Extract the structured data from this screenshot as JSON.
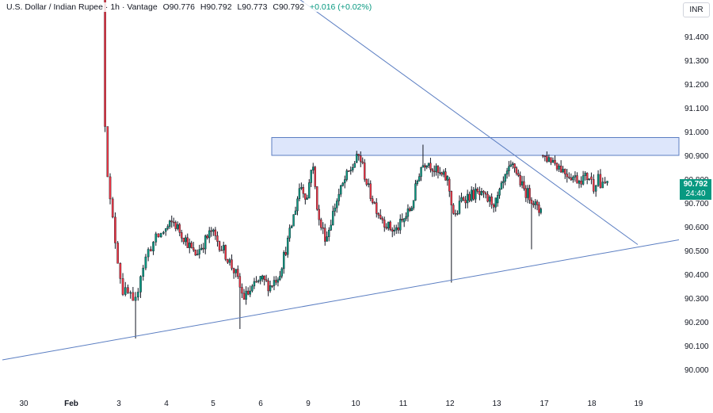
{
  "legend": {
    "symbol": "U.S. Dollar / Indian Rupee",
    "interval": "1h",
    "broker": "Vantage",
    "open": "O90.776",
    "high": "H90.792",
    "low": "L90.773",
    "close": "C90.792",
    "change": "+0.016 (+0.02%)",
    "change_color": "#089981"
  },
  "currency_button": "INR",
  "last_price": {
    "price": "90.792",
    "countdown": "24:40",
    "color": "#089981"
  },
  "chart_data": {
    "type": "candlestick",
    "y_axis": {
      "range": [
        89.95,
        91.52
      ],
      "ticks": [
        "90.000",
        "90.100",
        "90.200",
        "90.300",
        "90.400",
        "90.500",
        "90.600",
        "90.700",
        "90.800",
        "90.900",
        "91.000",
        "91.100",
        "91.200",
        "91.300",
        "91.400"
      ]
    },
    "x_axis": {
      "ticks": [
        "30",
        "Feb",
        "3",
        "4",
        "5",
        "6",
        "9",
        "10",
        "11",
        "12",
        "13",
        "17",
        "18",
        "19"
      ]
    },
    "colors": {
      "up": "#089981",
      "down": "#f23645",
      "drawing": "#5b7ec2",
      "zone_fill": "#dde6fb"
    },
    "resistance_zone": {
      "from": 90.9,
      "to": 90.975,
      "start_session": "6"
    },
    "trendlines": [
      {
        "name": "descending",
        "from": {
          "session": "Feb",
          "price": 91.6
        },
        "to": {
          "session": "18",
          "price": 90.525
        }
      },
      {
        "name": "ascending",
        "from": {
          "session": "30",
          "price": 90.04
        },
        "to": {
          "session": "19",
          "price": 90.545
        }
      }
    ],
    "sessions": [
      {
        "label": "3",
        "path": [
          [
            91.6,
            0
          ],
          [
            91.1,
            0.03
          ],
          [
            90.95,
            0.06
          ],
          [
            90.75,
            0.1
          ],
          [
            90.62,
            0.17
          ],
          [
            90.48,
            0.24
          ],
          [
            90.33,
            0.33
          ],
          [
            90.31,
            0.45
          ],
          [
            90.25,
            0.52
          ],
          [
            90.4,
            0.62
          ],
          [
            90.5,
            0.75
          ],
          [
            90.55,
            0.88
          ],
          [
            90.58,
            1
          ]
        ]
      },
      {
        "label": "4",
        "path": [
          [
            90.58,
            0
          ],
          [
            90.62,
            0.2
          ],
          [
            90.55,
            0.45
          ],
          [
            90.48,
            0.65
          ],
          [
            90.52,
            0.8
          ],
          [
            90.58,
            1
          ]
        ]
      },
      {
        "label": "5",
        "path": [
          [
            90.58,
            0
          ],
          [
            90.5,
            0.25
          ],
          [
            90.4,
            0.5
          ],
          [
            90.3,
            0.65
          ],
          [
            90.33,
            0.8
          ],
          [
            90.38,
            1
          ]
        ]
      },
      {
        "label": "6",
        "path": [
          [
            90.38,
            0
          ],
          [
            90.35,
            0.2
          ],
          [
            90.4,
            0.4
          ],
          [
            90.55,
            0.6
          ],
          [
            90.68,
            0.75
          ],
          [
            90.78,
            0.85
          ],
          [
            90.72,
            1
          ]
        ]
      },
      {
        "label": "9",
        "path": [
          [
            90.72,
            0
          ],
          [
            90.88,
            0.1
          ],
          [
            90.62,
            0.25
          ],
          [
            90.55,
            0.4
          ],
          [
            90.7,
            0.6
          ],
          [
            90.8,
            0.8
          ],
          [
            90.87,
            1
          ]
        ]
      },
      {
        "label": "10",
        "path": [
          [
            90.87,
            0
          ],
          [
            90.9,
            0.1
          ],
          [
            90.75,
            0.3
          ],
          [
            90.66,
            0.5
          ],
          [
            90.6,
            0.7
          ],
          [
            90.58,
            0.85
          ],
          [
            90.62,
            1
          ]
        ]
      },
      {
        "label": "11",
        "path": [
          [
            90.62,
            0
          ],
          [
            90.68,
            0.2
          ],
          [
            90.85,
            0.4
          ],
          [
            90.88,
            0.55
          ],
          [
            90.82,
            0.8
          ],
          [
            90.8,
            1
          ]
        ]
      },
      {
        "label": "12",
        "path": [
          [
            90.8,
            0
          ],
          [
            90.63,
            0.15
          ],
          [
            90.72,
            0.3
          ],
          [
            90.74,
            0.6
          ],
          [
            90.71,
            0.85
          ],
          [
            90.7,
            1
          ]
        ]
      },
      {
        "label": "13",
        "path": [
          [
            90.7,
            0
          ],
          [
            90.82,
            0.25
          ],
          [
            90.86,
            0.4
          ],
          [
            90.76,
            0.6
          ],
          [
            90.72,
            0.8
          ],
          [
            90.66,
            0.95
          ],
          [
            90.69,
            1
          ]
        ]
      },
      {
        "label": "17",
        "path": [
          [
            90.9,
            0
          ],
          [
            90.88,
            0.25
          ],
          [
            90.83,
            0.5
          ],
          [
            90.8,
            0.75
          ],
          [
            90.81,
            1
          ]
        ]
      },
      {
        "label": "18",
        "path": [
          [
            90.81,
            0
          ],
          [
            90.77,
            0.25
          ],
          [
            90.82,
            0.5
          ],
          [
            90.76,
            0.65
          ],
          [
            90.79,
            1
          ]
        ]
      }
    ],
    "candles_per_session": 24,
    "last_close": 90.792,
    "notable_wicks": [
      {
        "session": "3",
        "low": 90.13
      },
      {
        "session": "5",
        "low": 90.17
      },
      {
        "session": "11",
        "high": 90.945
      },
      {
        "session": "12",
        "low": 90.365
      },
      {
        "session": "13",
        "low": 90.505
      }
    ]
  }
}
